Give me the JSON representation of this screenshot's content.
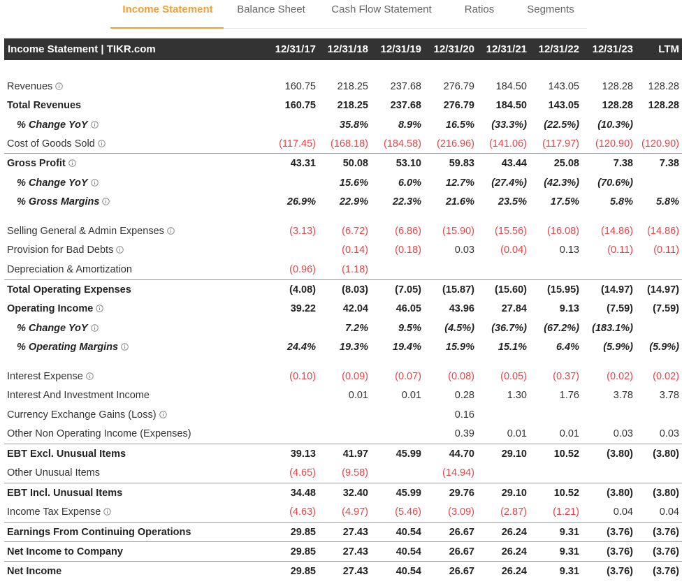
{
  "tabs": [
    "Income Statement",
    "Balance Sheet",
    "Cash Flow Statement",
    "Ratios",
    "Segments"
  ],
  "table": {
    "header": [
      "Income Statement | TIKR.com",
      "12/31/17",
      "12/31/18",
      "12/31/19",
      "12/31/20",
      "12/31/21",
      "12/31/22",
      "12/31/23",
      "LTM"
    ],
    "rows": [
      [
        "Revenues",
        "160.75",
        "218.25",
        "237.68",
        "276.79",
        "184.50",
        "143.05",
        "128.28",
        "128.28"
      ],
      [
        "Total Revenues",
        "160.75",
        "218.25",
        "237.68",
        "276.79",
        "184.50",
        "143.05",
        "128.28",
        "128.28"
      ],
      [
        "% Change YoY",
        null,
        "35.8%",
        "8.9%",
        "16.5%",
        "(33.3%)",
        "(22.5%)",
        "(10.3%)",
        null
      ],
      [
        "Cost of Goods Sold",
        "(117.45)",
        "(168.18)",
        "(184.58)",
        "(216.96)",
        "(141.06)",
        "(117.97)",
        "(120.90)",
        "(120.90)"
      ],
      [
        "Gross Profit",
        "43.31",
        "50.08",
        "53.10",
        "59.83",
        "43.44",
        "25.08",
        "7.38",
        "7.38"
      ],
      [
        "% Change YoY",
        null,
        "15.6%",
        "6.0%",
        "12.7%",
        "(27.4%)",
        "(42.3%)",
        "(70.6%)",
        null
      ],
      [
        "% Gross Margins",
        "26.9%",
        "22.9%",
        "22.3%",
        "21.6%",
        "23.5%",
        "17.5%",
        "5.8%",
        "5.8%"
      ],
      [
        "Selling General & Admin Expenses",
        "(3.13)",
        "(6.72)",
        "(6.86)",
        "(15.90)",
        "(15.56)",
        "(16.08)",
        "(14.86)",
        "(14.86)"
      ],
      [
        "Provision for Bad Debts",
        null,
        "(0.14)",
        "(0.18)",
        "0.03",
        "(0.04)",
        "0.13",
        "(0.11)",
        "(0.11)"
      ],
      [
        "Depreciation & Amortization",
        "(0.96)",
        "(1.18)",
        null,
        null,
        null,
        null,
        null,
        null
      ],
      [
        "Total Operating Expenses",
        "(4.08)",
        "(8.03)",
        "(7.05)",
        "(15.87)",
        "(15.60)",
        "(15.95)",
        "(14.97)",
        "(14.97)"
      ],
      [
        "Operating Income",
        "39.22",
        "42.04",
        "46.05",
        "43.96",
        "27.84",
        "9.13",
        "(7.59)",
        "(7.59)"
      ],
      [
        "% Change YoY",
        null,
        "7.2%",
        "9.5%",
        "(4.5%)",
        "(36.7%)",
        "(67.2%)",
        "(183.1%)",
        null
      ],
      [
        "% Operating Margins",
        "24.4%",
        "19.3%",
        "19.4%",
        "15.9%",
        "15.1%",
        "6.4%",
        "(5.9%)",
        "(5.9%)"
      ],
      [
        "Interest Expense",
        "(0.10)",
        "(0.09)",
        "(0.07)",
        "(0.08)",
        "(0.05)",
        "(0.37)",
        "(0.02)",
        "(0.02)"
      ],
      [
        "Interest And Investment Income",
        null,
        "0.01",
        "0.01",
        "0.28",
        "1.30",
        "1.76",
        "3.78",
        "3.78"
      ],
      [
        "Currency Exchange Gains (Loss)",
        null,
        null,
        null,
        "0.16",
        null,
        null,
        null,
        null
      ],
      [
        "Other Non Operating Income (Expenses)",
        null,
        null,
        null,
        "0.39",
        "0.01",
        "0.01",
        "0.03",
        "0.03"
      ],
      [
        "EBT Excl. Unusual Items",
        "39.13",
        "41.97",
        "45.99",
        "44.70",
        "29.10",
        "10.52",
        "(3.80)",
        "(3.80)"
      ],
      [
        "Other Unusual Items",
        "(4.65)",
        "(9.58)",
        null,
        "(14.94)",
        null,
        null,
        null,
        null
      ],
      [
        "EBT Incl. Unusual Items",
        "34.48",
        "32.40",
        "45.99",
        "29.76",
        "29.10",
        "10.52",
        "(3.80)",
        "(3.80)"
      ],
      [
        "Income Tax Expense",
        "(4.63)",
        "(4.97)",
        "(5.46)",
        "(3.09)",
        "(2.87)",
        "(1.21)",
        "0.04",
        "0.04"
      ],
      [
        "Earnings From Continuing Operations",
        "29.85",
        "27.43",
        "40.54",
        "26.67",
        "26.24",
        "9.31",
        "(3.76)",
        "(3.76)"
      ],
      [
        "Net Income to Company",
        "29.85",
        "27.43",
        "40.54",
        "26.67",
        "26.24",
        "9.31",
        "(3.76)",
        "(3.76)"
      ],
      [
        "Net Income",
        "29.85",
        "27.43",
        "40.54",
        "26.67",
        "26.24",
        "9.31",
        "(3.76)",
        "(3.76)"
      ]
    ]
  }
}
